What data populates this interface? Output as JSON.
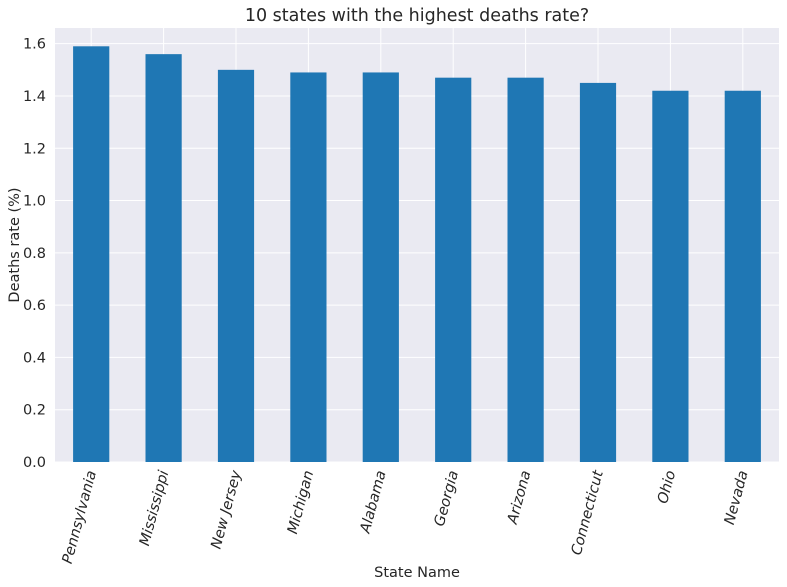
{
  "chart_data": {
    "type": "bar",
    "title": "10 states with the highest deaths rate?",
    "xlabel": "State Name",
    "ylabel": "Deaths rate (%)",
    "categories": [
      "Pennsylvania",
      "Mississippi",
      "New Jersey",
      "Michigan",
      "Alabama",
      "Georgia",
      "Arizona",
      "Connecticut",
      "Ohio",
      "Nevada"
    ],
    "values": [
      1.59,
      1.56,
      1.5,
      1.49,
      1.49,
      1.47,
      1.47,
      1.45,
      1.42,
      1.42
    ],
    "ylim": [
      0,
      1.66
    ],
    "yticks": [
      "0.0",
      "0.2",
      "0.4",
      "0.6",
      "0.8",
      "1.0",
      "1.2",
      "1.4",
      "1.6"
    ],
    "grid": true,
    "legend": "none",
    "colors": {
      "bar": "#1f77b4",
      "background": "#eaeaf2",
      "grid": "#ffffff"
    }
  }
}
